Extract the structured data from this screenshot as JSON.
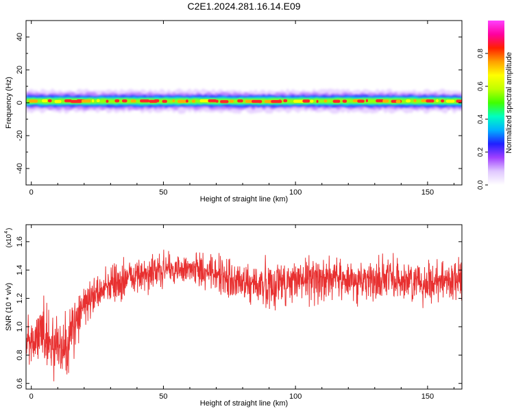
{
  "figure": {
    "title": "C2E1.2024.281.16.14.E09"
  },
  "chart_data": [
    {
      "type": "heatmap",
      "xlabel": "Height of straight line (km)",
      "ylabel": "Frequency (Hz)",
      "xlim": [
        -2,
        163
      ],
      "ylim": [
        -50,
        50
      ],
      "xticks": [
        0,
        50,
        100,
        150
      ],
      "yticks": [
        -40,
        -20,
        0,
        20,
        40
      ],
      "band": {
        "center_hz": 1,
        "description_values": {
          "core_halfwidth_hz": 1.2,
          "mid_halfwidth_hz": 2.5,
          "outer_halfwidth_hz": 4.5,
          "halo_halfwidth_hz": 6.5
        }
      },
      "colorbar": {
        "label": "Normalized spectral amplitude",
        "range": [
          0,
          1
        ],
        "ticks": [
          "0.0",
          "0.2",
          "0.4",
          "0.6",
          "0.8"
        ],
        "colormap": [
          "#ffffff",
          "#e0c8ff",
          "#a040ff",
          "#2020ff",
          "#00b0ff",
          "#00ffc0",
          "#40ff00",
          "#c0ff00",
          "#ffff00",
          "#ffa000",
          "#ff2000",
          "#ff00a0",
          "#ff40ff"
        ]
      }
    },
    {
      "type": "line",
      "xlabel": "Height of straight line (km)",
      "ylabel": "SNR (10 * v/v)",
      "yscale_label": "(x10",
      "yscale_exp": "4",
      "xlim": [
        -2,
        163
      ],
      "ylim": [
        0.56,
        1.72
      ],
      "xticks": [
        0,
        50,
        100,
        150
      ],
      "yticks": [
        "0.6",
        "0.8",
        "1.0",
        "1.2",
        "1.4",
        "1.6"
      ],
      "series": [
        {
          "color": "#e83030",
          "x": [
            -2,
            0,
            2,
            4,
            6,
            8,
            10,
            12,
            14,
            16,
            18,
            20,
            25,
            30,
            35,
            40,
            45,
            50,
            55,
            60,
            65,
            70,
            75,
            80,
            85,
            90,
            95,
            100,
            105,
            110,
            115,
            120,
            125,
            130,
            135,
            140,
            145,
            150,
            155,
            160,
            163
          ],
          "mean": [
            0.9,
            0.88,
            0.92,
            0.95,
            0.93,
            0.9,
            0.88,
            0.86,
            0.93,
            1.0,
            1.08,
            1.15,
            1.25,
            1.3,
            1.33,
            1.36,
            1.38,
            1.4,
            1.4,
            1.4,
            1.4,
            1.38,
            1.32,
            1.3,
            1.3,
            1.3,
            1.31,
            1.32,
            1.33,
            1.35,
            1.34,
            1.32,
            1.33,
            1.33,
            1.34,
            1.33,
            1.32,
            1.32,
            1.33,
            1.33,
            1.32
          ],
          "noise": [
            0.15,
            0.15,
            0.16,
            0.17,
            0.17,
            0.18,
            0.18,
            0.18,
            0.17,
            0.15,
            0.13,
            0.11,
            0.1,
            0.1,
            0.1,
            0.1,
            0.1,
            0.09,
            0.08,
            0.08,
            0.09,
            0.1,
            0.12,
            0.12,
            0.12,
            0.12,
            0.12,
            0.12,
            0.12,
            0.12,
            0.11,
            0.11,
            0.11,
            0.11,
            0.11,
            0.11,
            0.11,
            0.11,
            0.11,
            0.12,
            0.12
          ],
          "sample_count": 1600
        }
      ]
    }
  ]
}
